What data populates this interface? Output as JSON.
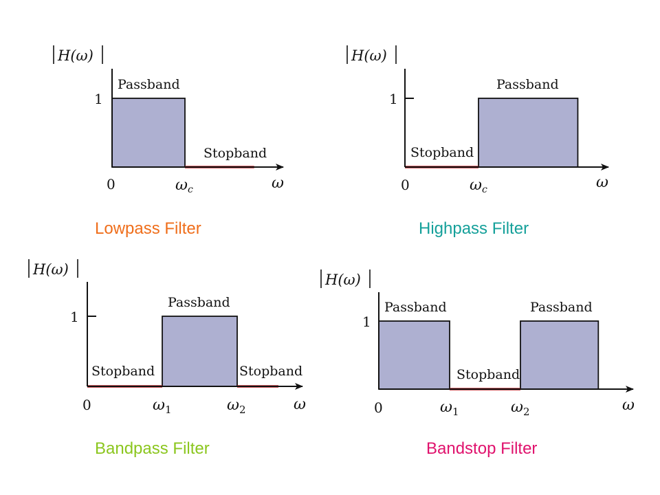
{
  "colors": {
    "fill": "#aeb0d1",
    "stopband_line": "#c0272d",
    "axis": "#111111",
    "lowpass": "#ef6e1b",
    "highpass": "#15a09a",
    "bandpass": "#8bc61e",
    "bandstop": "#e0126d"
  },
  "labels": {
    "magnitude": "H(ω)",
    "one": "1",
    "zero": "0",
    "omega": "ω",
    "passband": "Passband",
    "stopband": "Stopband",
    "wc_base": "ω",
    "wc_sub": "c",
    "w1_base": "ω",
    "w1_sub": "1",
    "w2_base": "ω",
    "w2_sub": "2"
  },
  "panels": {
    "lowpass": {
      "caption": "Lowpass Filter",
      "passbands": [
        [
          0,
          1
        ]
      ],
      "stopbands": [
        [
          1,
          1.95
        ]
      ]
    },
    "highpass": {
      "caption": "Highpass Filter",
      "passbands": [
        [
          1,
          2.35
        ]
      ],
      "stopbands": [
        [
          0,
          1
        ]
      ]
    },
    "bandpass": {
      "caption": "Bandpass Filter",
      "passbands": [
        [
          1,
          2
        ]
      ],
      "stopbands": [
        [
          0,
          1
        ],
        [
          2,
          2.55
        ]
      ]
    },
    "bandstop": {
      "caption": "Bandstop Filter",
      "passbands": [
        [
          0,
          1
        ],
        [
          2,
          3.1
        ]
      ],
      "stopbands": [
        [
          1,
          2
        ]
      ]
    }
  }
}
